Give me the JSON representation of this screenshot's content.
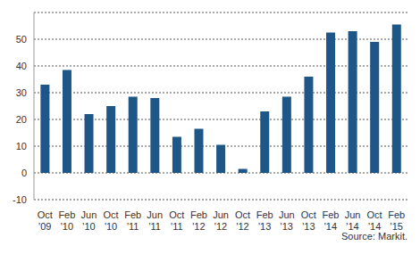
{
  "chart_data": {
    "type": "bar",
    "categories": [
      "Oct '09",
      "Feb '10",
      "Jun '10",
      "Oct '10",
      "Feb '11",
      "Jun '11",
      "Oct '11",
      "Feb '12",
      "Jun '12",
      "Oct '12",
      "Feb '13",
      "Jun '13",
      "Oct '13",
      "Feb '14",
      "Jun '14",
      "Oct '14",
      "Feb '15"
    ],
    "values": [
      33,
      38.5,
      22,
      25,
      28.5,
      28,
      13.5,
      16.5,
      10.5,
      1.5,
      23,
      28.5,
      36,
      52.5,
      53,
      49,
      55.5
    ],
    "color": "#1f5688",
    "ylim": [
      -10,
      60
    ],
    "yticks": [
      -10,
      0,
      10,
      20,
      30,
      40,
      50
    ],
    "grid": true,
    "source": "Source: Markit."
  }
}
